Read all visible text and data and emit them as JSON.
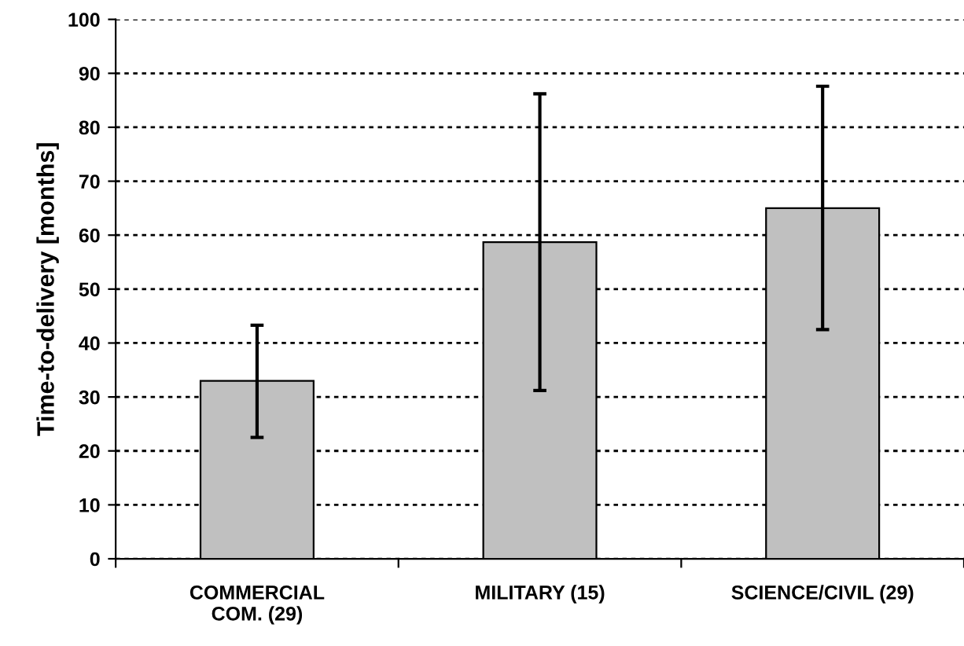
{
  "chart_data": {
    "type": "bar",
    "ylabel": "Time-to-delivery [months]",
    "categories": [
      "COMMERCIAL\nCOM. (29)",
      "MILITARY (15)",
      "SCIENCE/CIVIL (29)"
    ],
    "values": [
      33,
      58.7,
      65
    ],
    "color": "#c0c0c0",
    "errors": [
      [
        22.5,
        43.3
      ],
      [
        31.2,
        86.2
      ],
      [
        42.5,
        87.6
      ]
    ],
    "ylim": [
      0,
      100
    ],
    "yticks": [
      0,
      10,
      20,
      30,
      40,
      50,
      60,
      70,
      80,
      90,
      100
    ],
    "grid": "y"
  }
}
